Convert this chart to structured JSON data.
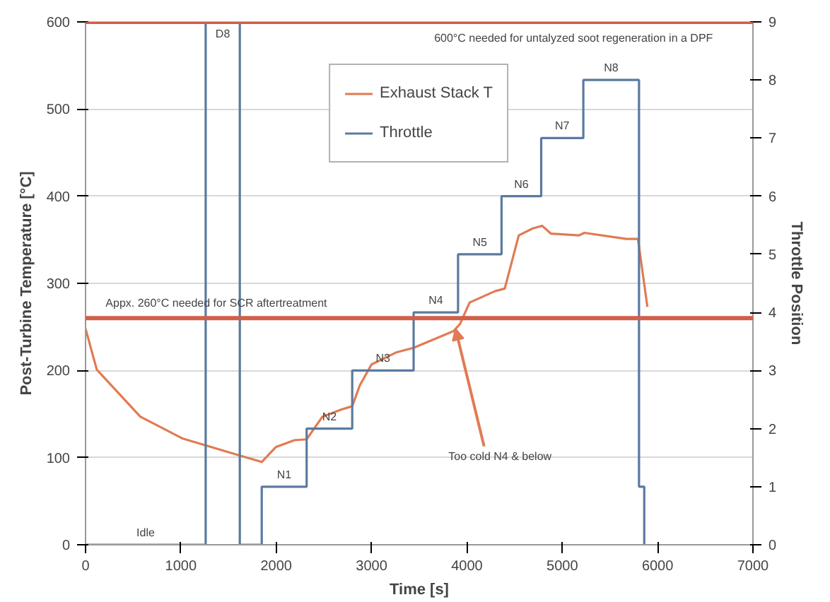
{
  "chart_data": {
    "type": "line",
    "xlabel": "Time [s]",
    "ylabel": "Post-Turbine Temperature [°C]",
    "y2label": "Throttle Position",
    "xlim": [
      0,
      7000
    ],
    "xticks": [
      0,
      1000,
      2000,
      3000,
      4000,
      5000,
      6000,
      7000
    ],
    "ylim": [
      0,
      600
    ],
    "yticks": [
      0,
      100,
      200,
      300,
      400,
      500,
      600
    ],
    "y2lim": [
      0,
      9
    ],
    "y2ticks": [
      0,
      1,
      2,
      3,
      4,
      5,
      6,
      7,
      8,
      9
    ],
    "grid": "y",
    "legend": "top",
    "series": [
      {
        "name": "Exhaust Stack T",
        "color": "#e07b54",
        "x": [
          0,
          118,
          574,
          1015,
          1600,
          1848,
          1995,
          2191,
          2319,
          2485,
          2680,
          2797,
          2877,
          3000,
          3265,
          3441,
          3857,
          3926,
          4029,
          4294,
          4397,
          4544,
          4691,
          4790,
          4882,
          5176,
          5231,
          5672,
          5794,
          5893
        ],
        "values": [
          248,
          201,
          147,
          122,
          103,
          95,
          112,
          120,
          121,
          147,
          155,
          159,
          183,
          207,
          221,
          226,
          245,
          253,
          278,
          291,
          294,
          355,
          363,
          366,
          357,
          355,
          358,
          351,
          351,
          273
        ]
      },
      {
        "name": "Throttle",
        "type": "step",
        "axis": "y2",
        "color": "#5b7aa0",
        "x": [
          0,
          1260,
          1618,
          1848,
          2319,
          2797,
          3441,
          3907,
          4363,
          4779,
          5221,
          5805,
          5860
        ],
        "values": [
          0,
          9,
          0,
          1,
          2,
          3,
          4,
          5,
          6,
          7,
          8,
          1,
          0
        ]
      }
    ],
    "ref_lines": [
      {
        "axis": "y",
        "value": 600,
        "label": "600°C needed for untalyzed soot regeneration in a DPF",
        "color": "#d0604a"
      },
      {
        "axis": "y",
        "value": 260,
        "label": "Appx. 260°C needed for SCR aftertreatment",
        "color": "#d0604a"
      }
    ],
    "annotations": [
      "Idle",
      "D8",
      "N1",
      "N2",
      "N3",
      "N4",
      "N5",
      "N6",
      "N7",
      "N8",
      {
        "text": "Too cold N4 & below",
        "x": 3880,
        "y": 248
      }
    ]
  }
}
